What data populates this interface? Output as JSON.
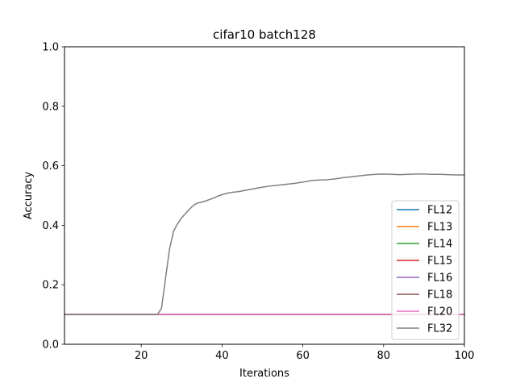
{
  "chart_data": {
    "type": "line",
    "title": "cifar10 batch128",
    "xlabel": "Iterations",
    "ylabel": "Accuracy",
    "xlim": [
      1,
      100
    ],
    "ylim": [
      0.0,
      1.0
    ],
    "xticks": [
      20,
      40,
      60,
      80,
      100
    ],
    "yticks": [
      0.0,
      0.2,
      0.4,
      0.6,
      0.8,
      1.0
    ],
    "xtick_labels": [
      "20",
      "40",
      "60",
      "80",
      "100"
    ],
    "ytick_labels": [
      "0.0",
      "0.2",
      "0.4",
      "0.6",
      "0.8",
      "1.0"
    ],
    "grid": false,
    "legend_position": "lower-right",
    "series": [
      {
        "name": "FL12",
        "color": "#1f77b4",
        "x": [
          1,
          100
        ],
        "y": [
          0.1,
          0.1
        ]
      },
      {
        "name": "FL13",
        "color": "#ff7f0e",
        "x": [
          1,
          100
        ],
        "y": [
          0.1,
          0.1
        ]
      },
      {
        "name": "FL14",
        "color": "#2ca02c",
        "x": [
          1,
          100
        ],
        "y": [
          0.1,
          0.1
        ]
      },
      {
        "name": "FL15",
        "color": "#d62728",
        "x": [
          1,
          100
        ],
        "y": [
          0.1,
          0.1
        ]
      },
      {
        "name": "FL16",
        "color": "#9467bd",
        "x": [
          1,
          100
        ],
        "y": [
          0.1,
          0.1
        ]
      },
      {
        "name": "FL18",
        "color": "#8c564b",
        "x": [
          1,
          100
        ],
        "y": [
          0.1,
          0.1
        ]
      },
      {
        "name": "FL20",
        "color": "#e377c2",
        "x": [
          1,
          100
        ],
        "y": [
          0.1,
          0.1
        ]
      },
      {
        "name": "FL32",
        "color": "#7f7f7f",
        "x": [
          1,
          24,
          25,
          26,
          27,
          28,
          29,
          30,
          31,
          32,
          33,
          34,
          35,
          36,
          37,
          38,
          39,
          40,
          42,
          44,
          46,
          48,
          50,
          52,
          54,
          56,
          58,
          60,
          62,
          64,
          66,
          68,
          70,
          72,
          74,
          76,
          78,
          80,
          82,
          84,
          86,
          88,
          90,
          92,
          94,
          96,
          98,
          100
        ],
        "y": [
          0.1,
          0.1,
          0.12,
          0.22,
          0.32,
          0.38,
          0.405,
          0.425,
          0.44,
          0.455,
          0.468,
          0.475,
          0.478,
          0.482,
          0.487,
          0.492,
          0.498,
          0.503,
          0.51,
          0.513,
          0.518,
          0.523,
          0.528,
          0.532,
          0.535,
          0.538,
          0.541,
          0.545,
          0.55,
          0.552,
          0.553,
          0.556,
          0.56,
          0.563,
          0.566,
          0.569,
          0.571,
          0.572,
          0.571,
          0.57,
          0.571,
          0.572,
          0.572,
          0.571,
          0.571,
          0.57,
          0.569,
          0.569
        ]
      }
    ]
  }
}
